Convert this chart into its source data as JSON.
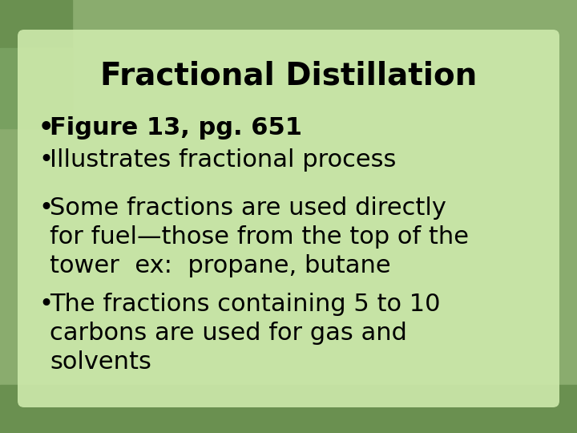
{
  "title": "Fractional Distillation",
  "title_fontsize": 28,
  "title_fontweight": "bold",
  "title_color": "#000000",
  "bg_color": "#8aac6e",
  "box_color": "#cce8aa",
  "bullet_items": [
    {
      "text": "Figure 13, pg. 651",
      "bold": true,
      "fontsize": 22
    },
    {
      "text": "Illustrates fractional process",
      "bold": false,
      "fontsize": 22
    },
    {
      "text": "Some fractions are used directly\nfor fuel—those from the top of the\ntower  ex:  propane, butane",
      "bold": false,
      "fontsize": 22
    },
    {
      "text": "The fractions containing 5 to 10\ncarbons are used for gas and\nsolvents",
      "bold": false,
      "fontsize": 22
    }
  ],
  "bullet_color": "#000000",
  "bullet_char": "•",
  "figsize": [
    7.2,
    5.4
  ],
  "dpi": 100
}
